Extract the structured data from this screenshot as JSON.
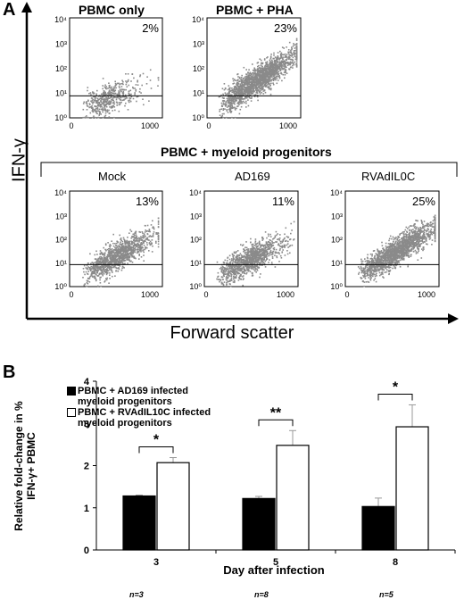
{
  "panel_a": {
    "letter": "A",
    "y_axis_label": "IFN-γ",
    "x_axis_label": "Forward scatter",
    "group_label": "PBMC + myeloid progenitors",
    "x_ticks": [
      "0",
      "1000"
    ],
    "y_ticks": [
      "10⁰",
      "10¹",
      "10²",
      "10³",
      "10⁴"
    ]
  },
  "panel_b": {
    "letter": "B",
    "ylabel_line1": "Relative fold-change in %",
    "ylabel_line2": "IFN-γ+ PBMC",
    "xlabel": "Day after infection",
    "legend": [
      {
        "line1": "PBMC + AD169 infected",
        "line2": "myeloid progenitors"
      },
      {
        "line1": "PBMC + RVAdIL10C infected",
        "line2": "myeloid progenitors"
      }
    ],
    "n_labels": [
      "n=3",
      "n=8",
      "n=5"
    ],
    "colors": {
      "ad169": "#000000",
      "rvadil10c": "#ffffff"
    }
  },
  "chart_data": [
    {
      "type": "scatter",
      "title": "PBMC only",
      "annotation": "2%",
      "xlim": [
        0,
        1000
      ],
      "ylim_log10": [
        0,
        4
      ]
    },
    {
      "type": "scatter",
      "title": "PBMC + PHA",
      "annotation": "23%",
      "xlim": [
        0,
        1000
      ],
      "ylim_log10": [
        0,
        4
      ]
    },
    {
      "type": "scatter",
      "title": "Mock",
      "annotation": "13%",
      "xlim": [
        0,
        1000
      ],
      "ylim_log10": [
        0,
        4
      ]
    },
    {
      "type": "scatter",
      "title": "AD169",
      "annotation": "11%",
      "xlim": [
        0,
        1000
      ],
      "ylim_log10": [
        0,
        4
      ]
    },
    {
      "type": "scatter",
      "title": "RVAdIL0C",
      "annotation": "25%",
      "xlim": [
        0,
        1000
      ],
      "ylim_log10": [
        0,
        4
      ]
    },
    {
      "type": "bar",
      "categories": [
        "3",
        "5",
        "8"
      ],
      "series": [
        {
          "name": "PBMC + AD169 infected myeloid progenitors",
          "values": [
            1.28,
            1.22,
            1.03
          ],
          "errors": [
            0.02,
            0.05,
            0.2
          ]
        },
        {
          "name": "PBMC + RVAdIL10C infected myeloid progenitors",
          "values": [
            2.07,
            2.48,
            2.92
          ],
          "errors": [
            0.12,
            0.35,
            0.52
          ]
        }
      ],
      "significance": [
        "*",
        "**",
        "*"
      ],
      "ylim": [
        0,
        4
      ],
      "yticks": [
        0,
        1,
        2,
        3,
        4
      ],
      "xlabel": "Day after infection",
      "ylabel": "Relative fold-change in % IFN-γ+ PBMC"
    }
  ]
}
